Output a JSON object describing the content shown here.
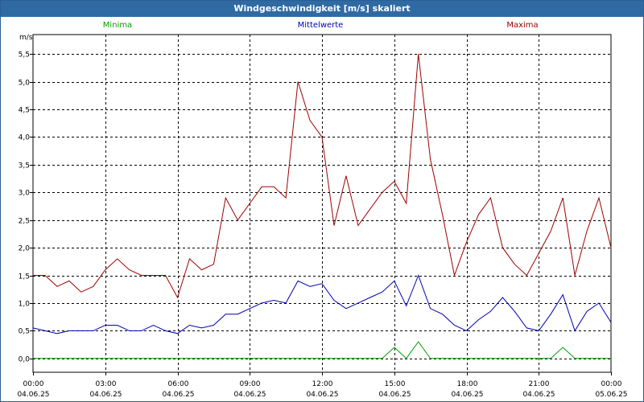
{
  "window": {
    "title": "Windgeschwindigkeit [m/s] skaliert"
  },
  "chart_data": {
    "type": "line",
    "title": "Windgeschwindigkeit [m/s] skaliert",
    "ylabel": "m/s",
    "ylim": [
      -0.25,
      5.85
    ],
    "xlim": [
      0,
      24
    ],
    "grid": true,
    "legend_placement": "top",
    "colors": {
      "Minima": "#00a000",
      "Mittelwerte": "#0000b4",
      "Maxima": "#a00000"
    },
    "x_ticks": [
      {
        "time": "00:00",
        "date": "04.06.25"
      },
      {
        "time": "03:00",
        "date": "04.06.25"
      },
      {
        "time": "06:00",
        "date": "04.06.25"
      },
      {
        "time": "09:00",
        "date": "04.06.25"
      },
      {
        "time": "12:00",
        "date": "04.06.25"
      },
      {
        "time": "15:00",
        "date": "04.06.25"
      },
      {
        "time": "18:00",
        "date": "04.06.25"
      },
      {
        "time": "21:00",
        "date": "04.06.25"
      },
      {
        "time": "00:00",
        "date": "05.06.25"
      }
    ],
    "y_ticks": [
      "0,0",
      "0,5",
      "1,0",
      "1,5",
      "2,0",
      "2,5",
      "3,0",
      "3,5",
      "4,0",
      "4,5",
      "5,0",
      "5,5"
    ],
    "x_hours": [
      0,
      0.5,
      1,
      1.5,
      2,
      2.5,
      3,
      3.5,
      4,
      4.5,
      5,
      5.5,
      6,
      6.5,
      7,
      7.5,
      8,
      8.5,
      9,
      9.5,
      10,
      10.5,
      11,
      11.5,
      12,
      12.5,
      13,
      13.5,
      14,
      14.5,
      15,
      15.5,
      16,
      16.5,
      17,
      17.5,
      18,
      18.5,
      19,
      19.5,
      20,
      20.5,
      21,
      21.5,
      22,
      22.5,
      23,
      23.5,
      24
    ],
    "series": [
      {
        "name": "Minima",
        "values": [
          0,
          0,
          0,
          0,
          0,
          0,
          0,
          0,
          0,
          0,
          0,
          0,
          0,
          0,
          0,
          0,
          0,
          0,
          0,
          0,
          0,
          0,
          0,
          0,
          0,
          0,
          0,
          0,
          0,
          0,
          0.2,
          0,
          0.3,
          0,
          0,
          0,
          0,
          0,
          0,
          0,
          0,
          0,
          0,
          0,
          0.2,
          0,
          0,
          0,
          0
        ]
      },
      {
        "name": "Mittelwerte",
        "values": [
          0.55,
          0.5,
          0.45,
          0.5,
          0.5,
          0.5,
          0.6,
          0.6,
          0.5,
          0.5,
          0.6,
          0.5,
          0.45,
          0.6,
          0.55,
          0.6,
          0.8,
          0.8,
          0.9,
          1.0,
          1.05,
          1.0,
          1.4,
          1.3,
          1.35,
          1.05,
          0.9,
          1.0,
          1.1,
          1.2,
          1.4,
          0.95,
          1.5,
          0.9,
          0.8,
          0.6,
          0.5,
          0.7,
          0.85,
          1.1,
          0.85,
          0.55,
          0.5,
          0.8,
          1.15,
          0.5,
          0.85,
          1.0,
          0.65
        ]
      },
      {
        "name": "Maxima",
        "values": [
          1.5,
          1.5,
          1.3,
          1.4,
          1.2,
          1.3,
          1.6,
          1.8,
          1.6,
          1.5,
          1.5,
          1.5,
          1.1,
          1.8,
          1.6,
          1.7,
          2.9,
          2.5,
          2.8,
          3.1,
          3.1,
          2.9,
          5.0,
          4.3,
          4.0,
          2.4,
          3.3,
          2.4,
          2.7,
          3.0,
          3.2,
          2.8,
          5.5,
          3.6,
          2.6,
          1.5,
          2.1,
          2.6,
          2.9,
          2.0,
          1.7,
          1.5,
          1.9,
          2.3,
          2.9,
          1.5,
          2.3,
          2.9,
          2.0
        ]
      }
    ]
  }
}
